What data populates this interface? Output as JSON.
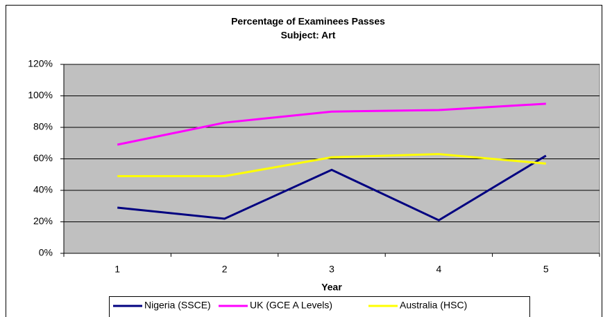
{
  "chart_data": {
    "type": "line",
    "title": "Percentage of Examinees Passes",
    "subtitle": "Subject: Art",
    "x_label": "Year",
    "categories": [
      "1",
      "2",
      "3",
      "4",
      "5"
    ],
    "series": [
      {
        "name": "Nigeria (SSCE)",
        "color": "#000080",
        "values": [
          29,
          22,
          53,
          21,
          62
        ]
      },
      {
        "name": "UK (GCE A Levels)",
        "color": "#ff00ff",
        "values": [
          69,
          83,
          90,
          91,
          95
        ]
      },
      {
        "name": "Australia (HSC)",
        "color": "#ffff00",
        "values": [
          49,
          49,
          61,
          63,
          57
        ]
      }
    ],
    "ylim": [
      0,
      120
    ],
    "yticks": [
      {
        "value": 0,
        "label": "0%"
      },
      {
        "value": 20,
        "label": "20%"
      },
      {
        "value": 40,
        "label": "40%"
      },
      {
        "value": 60,
        "label": "60%"
      },
      {
        "value": 80,
        "label": "80%"
      },
      {
        "value": 100,
        "label": "100%"
      },
      {
        "value": 120,
        "label": "120%"
      }
    ],
    "grid": true,
    "plot_background": "#c0c0c0",
    "legend": "bottom"
  }
}
